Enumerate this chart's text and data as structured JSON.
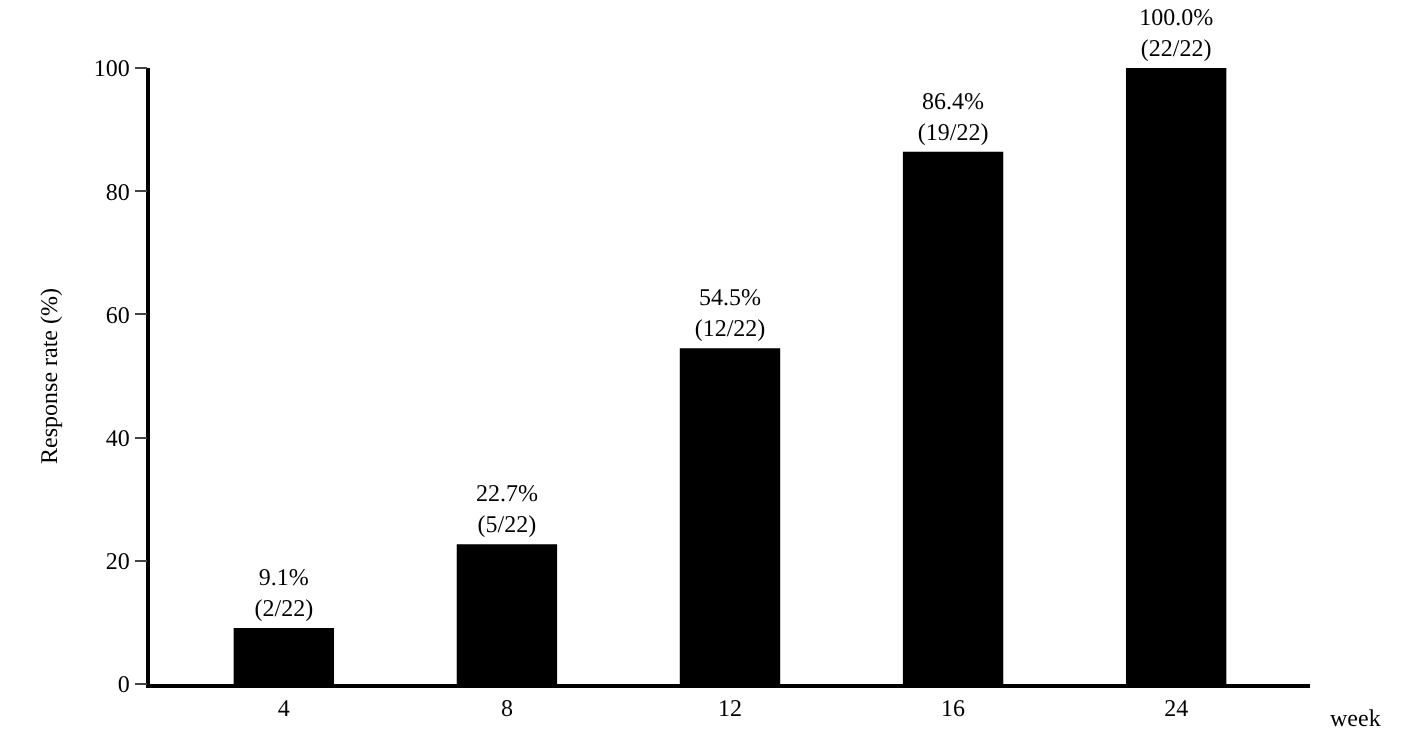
{
  "chart_data": {
    "type": "bar",
    "xlabel": "week",
    "ylabel": "Response rate (%)",
    "categories": [
      "4",
      "8",
      "12",
      "16",
      "24"
    ],
    "values": [
      9.1,
      22.7,
      54.5,
      86.4,
      100.0
    ],
    "value_labels": [
      "9.1%\n(2/22)",
      "22.7%\n(5/22)",
      "54.5%\n(12/22)",
      "86.4%\n(19/22)",
      "100.0%\n(22/22)"
    ],
    "color": "#000000",
    "ylim": [
      0,
      100
    ],
    "yticks": [
      0,
      20,
      40,
      60,
      80,
      100
    ]
  }
}
